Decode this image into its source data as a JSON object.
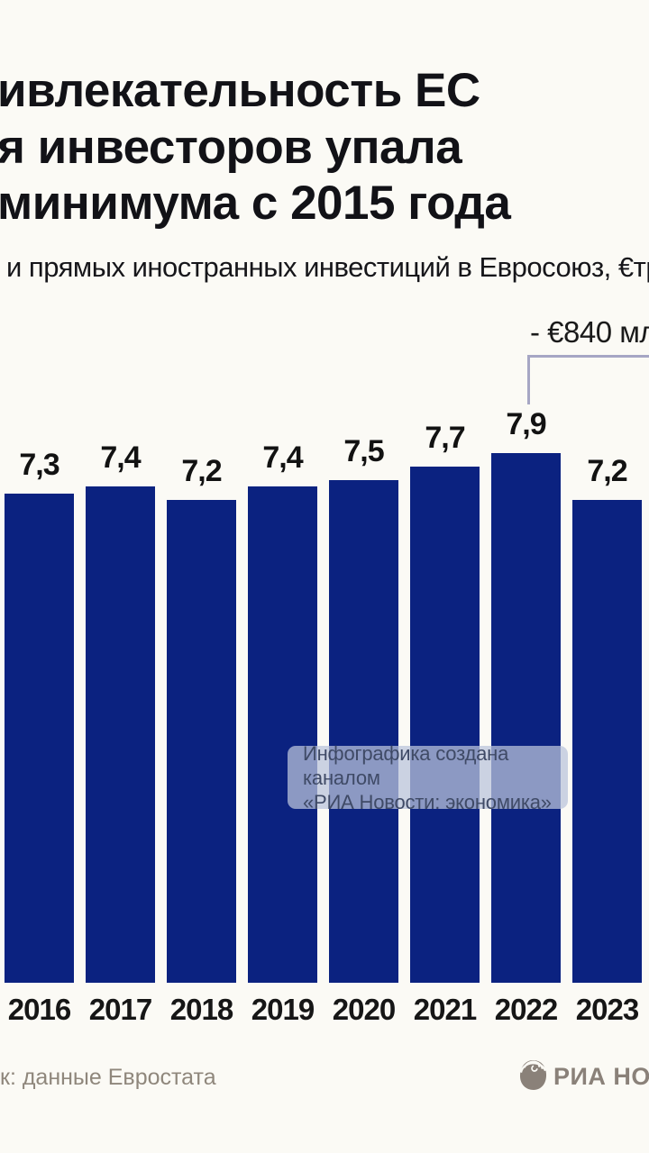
{
  "title": {
    "line1": "ивлекательность ЕС",
    "line2": "я инвесторов упала",
    "line3": "минимума с 2015 года"
  },
  "subtitle": "и прямых иностранных инвестиций в Евросоюз, €тр",
  "annotation": {
    "label": "- €840 мл"
  },
  "watermark": {
    "line1": "Инфографика создана каналом",
    "line2": "«РИА Новости: экономика»"
  },
  "source": "к: данные Евростата",
  "logo": {
    "text": "РИА НОВ",
    "icon": "nautilus-shell-icon"
  },
  "colors": {
    "background": "#fbfaf5",
    "bar": "#0b2280",
    "bracket": "#a6a6c4",
    "watermark_bg": "rgba(186,196,218,0.74)",
    "watermark_text": "#3f4a66",
    "muted_text": "#8f877c"
  },
  "chart_data": {
    "type": "bar",
    "categories": [
      "2016",
      "2017",
      "2018",
      "2019",
      "2020",
      "2021",
      "2022",
      "2023"
    ],
    "values": [
      7.3,
      7.4,
      7.2,
      7.4,
      7.5,
      7.7,
      7.9,
      7.2
    ],
    "value_labels": [
      "7,3",
      "7,4",
      "7,2",
      "7,4",
      "7,5",
      "7,7",
      "7,9",
      "7,2"
    ],
    "title": "",
    "xlabel": "",
    "ylabel": "",
    "ylim": [
      0,
      7.9
    ],
    "grid": false,
    "legend": false,
    "annotation_target_category": "2022"
  }
}
